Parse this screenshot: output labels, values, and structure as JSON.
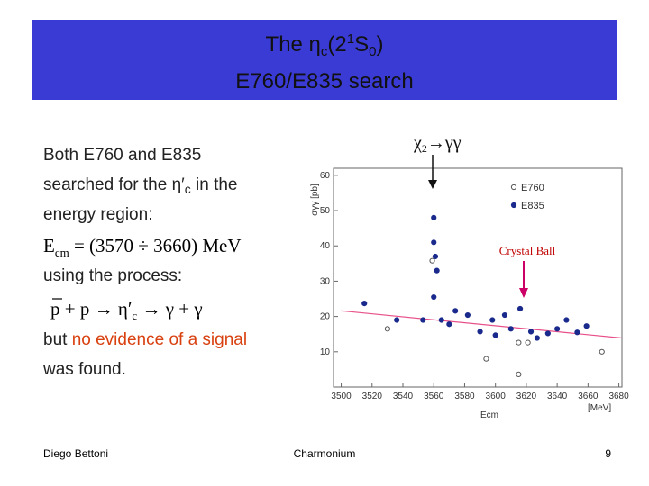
{
  "header": {
    "title_line1": [
      "The η",
      "c",
      "(2",
      "1",
      "S",
      "0",
      ")"
    ],
    "title_line2": "E760/E835 search"
  },
  "body": {
    "line1": "Both E760 and E835",
    "line2": [
      "searched for the η′",
      "c",
      " in the"
    ],
    "line3": "energy region:",
    "formula1": [
      "E",
      "cm",
      " = (3570 ÷ 3660) MeV"
    ],
    "line4": "using the process:",
    "formula2": [
      "p",
      " + p → η′",
      "c",
      " → γ + γ"
    ],
    "line5": [
      "but ",
      "no evidence of a signal"
    ],
    "line6": "was found."
  },
  "footer": {
    "author": "Diego Bettoni",
    "topic": "Charmonium",
    "page": "9"
  },
  "chart_data": {
    "type": "scatter",
    "annotations": {
      "chi2": [
        "χ",
        "2",
        "→γγ"
      ],
      "detector": "Crystal Ball"
    },
    "y_label": "σγγ [pb]",
    "x_label": "Ecm",
    "x_unit": "[MeV]",
    "xlim": [
      3495,
      3682
    ],
    "xticks": [
      3500,
      3520,
      3540,
      3560,
      3580,
      3600,
      3620,
      3640,
      3660,
      3680
    ],
    "ylim": [
      0,
      62
    ],
    "yticks": [
      10,
      20,
      30,
      40,
      50,
      60
    ],
    "series": [
      {
        "name": "E760",
        "color": "#555555",
        "marker": "open",
        "x": [
          3530,
          3559,
          3594,
          3615,
          3621,
          3615,
          3669
        ],
        "values": [
          16.5,
          35.8,
          8,
          12.6,
          12.6,
          3.6,
          10
        ]
      },
      {
        "name": "E835",
        "color": "#1a2a8c",
        "marker": "filled",
        "x": [
          3515,
          3536,
          3553,
          3560,
          3560,
          3560,
          3561,
          3562,
          3565,
          3570,
          3574,
          3582,
          3590,
          3598,
          3600,
          3606,
          3610,
          3616,
          3623,
          3627,
          3634,
          3640,
          3646,
          3653,
          3659
        ],
        "values": [
          23.7,
          19,
          19,
          25.5,
          41,
          48,
          37,
          33,
          19,
          17.8,
          21.6,
          20.4,
          15.7,
          19,
          14.7,
          20.4,
          16.5,
          22.2,
          15.7,
          13.9,
          15.2,
          16.5,
          19,
          15.5,
          17.3
        ]
      }
    ],
    "fit_line": {
      "color": "#e8508a",
      "x": [
        3500,
        3682
      ],
      "values": [
        21.6,
        13.9
      ]
    }
  }
}
